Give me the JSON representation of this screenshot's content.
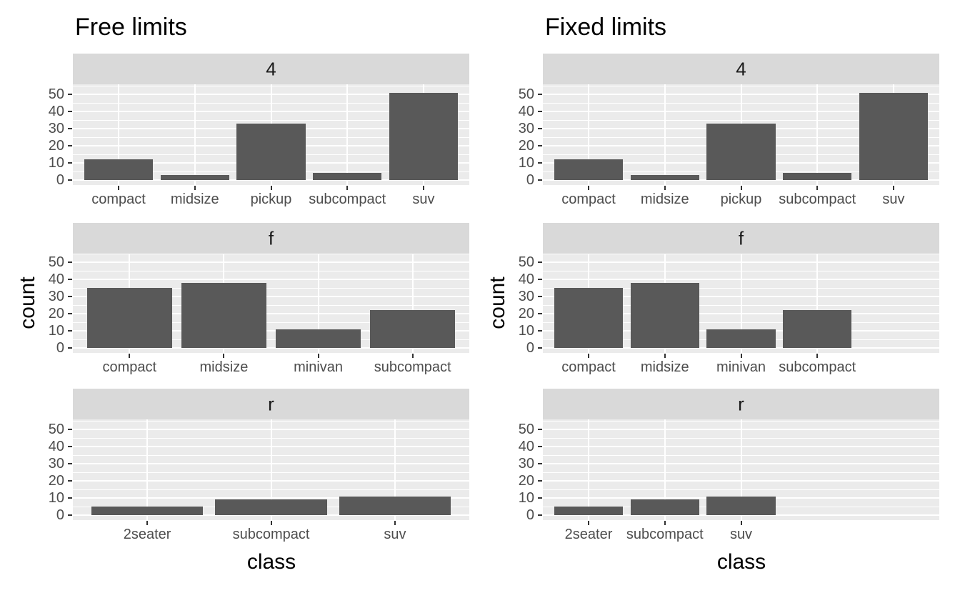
{
  "page": {
    "background": "#FFFFFF"
  },
  "chart_data": [
    {
      "type": "bar",
      "title": "Free limits",
      "xlabel": "class",
      "ylabel": "count",
      "x_scale": "free",
      "yticks": [
        0,
        10,
        20,
        30,
        40,
        50
      ],
      "ylim": [
        0,
        55
      ],
      "grid": "on",
      "legend": "none",
      "facet_labels": [
        "4",
        "f",
        "r"
      ],
      "facets": [
        {
          "label": "4",
          "categories": [
            "compact",
            "midsize",
            "pickup",
            "subcompact",
            "suv"
          ],
          "values": [
            12,
            3,
            33,
            4,
            51
          ]
        },
        {
          "label": "f",
          "categories": [
            "compact",
            "midsize",
            "minivan",
            "subcompact"
          ],
          "values": [
            35,
            38,
            11,
            22
          ]
        },
        {
          "label": "r",
          "categories": [
            "2seater",
            "subcompact",
            "suv"
          ],
          "values": [
            5,
            9,
            11
          ]
        }
      ]
    },
    {
      "type": "bar",
      "title": "Fixed limits",
      "xlabel": "class",
      "ylabel": "count",
      "x_scale": "fixed",
      "fixed_slot_count": 5,
      "yticks": [
        0,
        10,
        20,
        30,
        40,
        50
      ],
      "ylim": [
        0,
        55
      ],
      "grid": "on",
      "legend": "none",
      "facet_labels": [
        "4",
        "f",
        "r"
      ],
      "facets": [
        {
          "label": "4",
          "categories": [
            "compact",
            "midsize",
            "pickup",
            "subcompact",
            "suv"
          ],
          "values": [
            12,
            3,
            33,
            4,
            51
          ]
        },
        {
          "label": "f",
          "categories": [
            "compact",
            "midsize",
            "minivan",
            "subcompact"
          ],
          "values": [
            35,
            38,
            11,
            22
          ]
        },
        {
          "label": "r",
          "categories": [
            "2seater",
            "subcompact",
            "suv"
          ],
          "values": [
            5,
            9,
            11
          ]
        }
      ]
    }
  ],
  "style": {
    "bar_fill": "#595959",
    "panel_background": "#EBEBEB",
    "strip_background": "#D9D9D9",
    "gridline_color": "#FFFFFF",
    "axis_text_color": "#4D4D4D",
    "strip_text_color": "#1A1A1A",
    "title_color": "#000000",
    "tick_mark_color": "#333333"
  }
}
